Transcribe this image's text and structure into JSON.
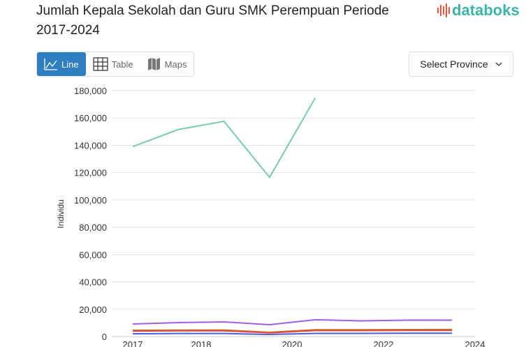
{
  "header": {
    "title": "Jumlah Kepala Sekolah dan Guru SMK Perempuan Periode 2017-2024",
    "logo": "databoks"
  },
  "tabs": [
    {
      "label": "Line",
      "icon": "line-chart-icon",
      "active": true
    },
    {
      "label": "Table",
      "icon": "table-icon"
    },
    {
      "label": "Maps",
      "icon": "map-icon"
    }
  ],
  "select": {
    "label": "Select Province",
    "icon": "chevron-down-icon"
  },
  "chart_data": {
    "type": "line",
    "title": "",
    "ylabel": "Individu",
    "xlabel": "",
    "ylim": [
      0,
      180000
    ],
    "grid": true,
    "x": [
      2017,
      2018,
      2019,
      2020,
      2021,
      2022,
      2023,
      2024
    ],
    "x_tick_labels": [
      "2017",
      "2018",
      "2020",
      "2022",
      "2024"
    ],
    "y_tick_labels": [
      "0",
      "20,000",
      "40,000",
      "60,000",
      "80,000",
      "100,000",
      "120,000",
      "140,000",
      "160,000",
      "180,000"
    ],
    "series": [
      {
        "color": "#7ccab4",
        "values": [
          139000,
          151500,
          157500,
          116500,
          174500,
          null,
          null,
          null
        ]
      },
      {
        "color": "#a35de8",
        "values": [
          9200,
          10200,
          10700,
          8700,
          12300,
          11500,
          12000,
          12000
        ]
      },
      {
        "color": "#c07a1a",
        "values": [
          4600,
          4700,
          4800,
          3100,
          5000,
          5000,
          5100,
          5200
        ]
      },
      {
        "color": "#e04848",
        "values": [
          4000,
          4200,
          4200,
          2700,
          4400,
          4400,
          4500,
          4500
        ]
      },
      {
        "color": "#4a5fd6",
        "values": [
          2000,
          2200,
          2200,
          1500,
          2300,
          2300,
          2400,
          2400
        ]
      }
    ]
  }
}
